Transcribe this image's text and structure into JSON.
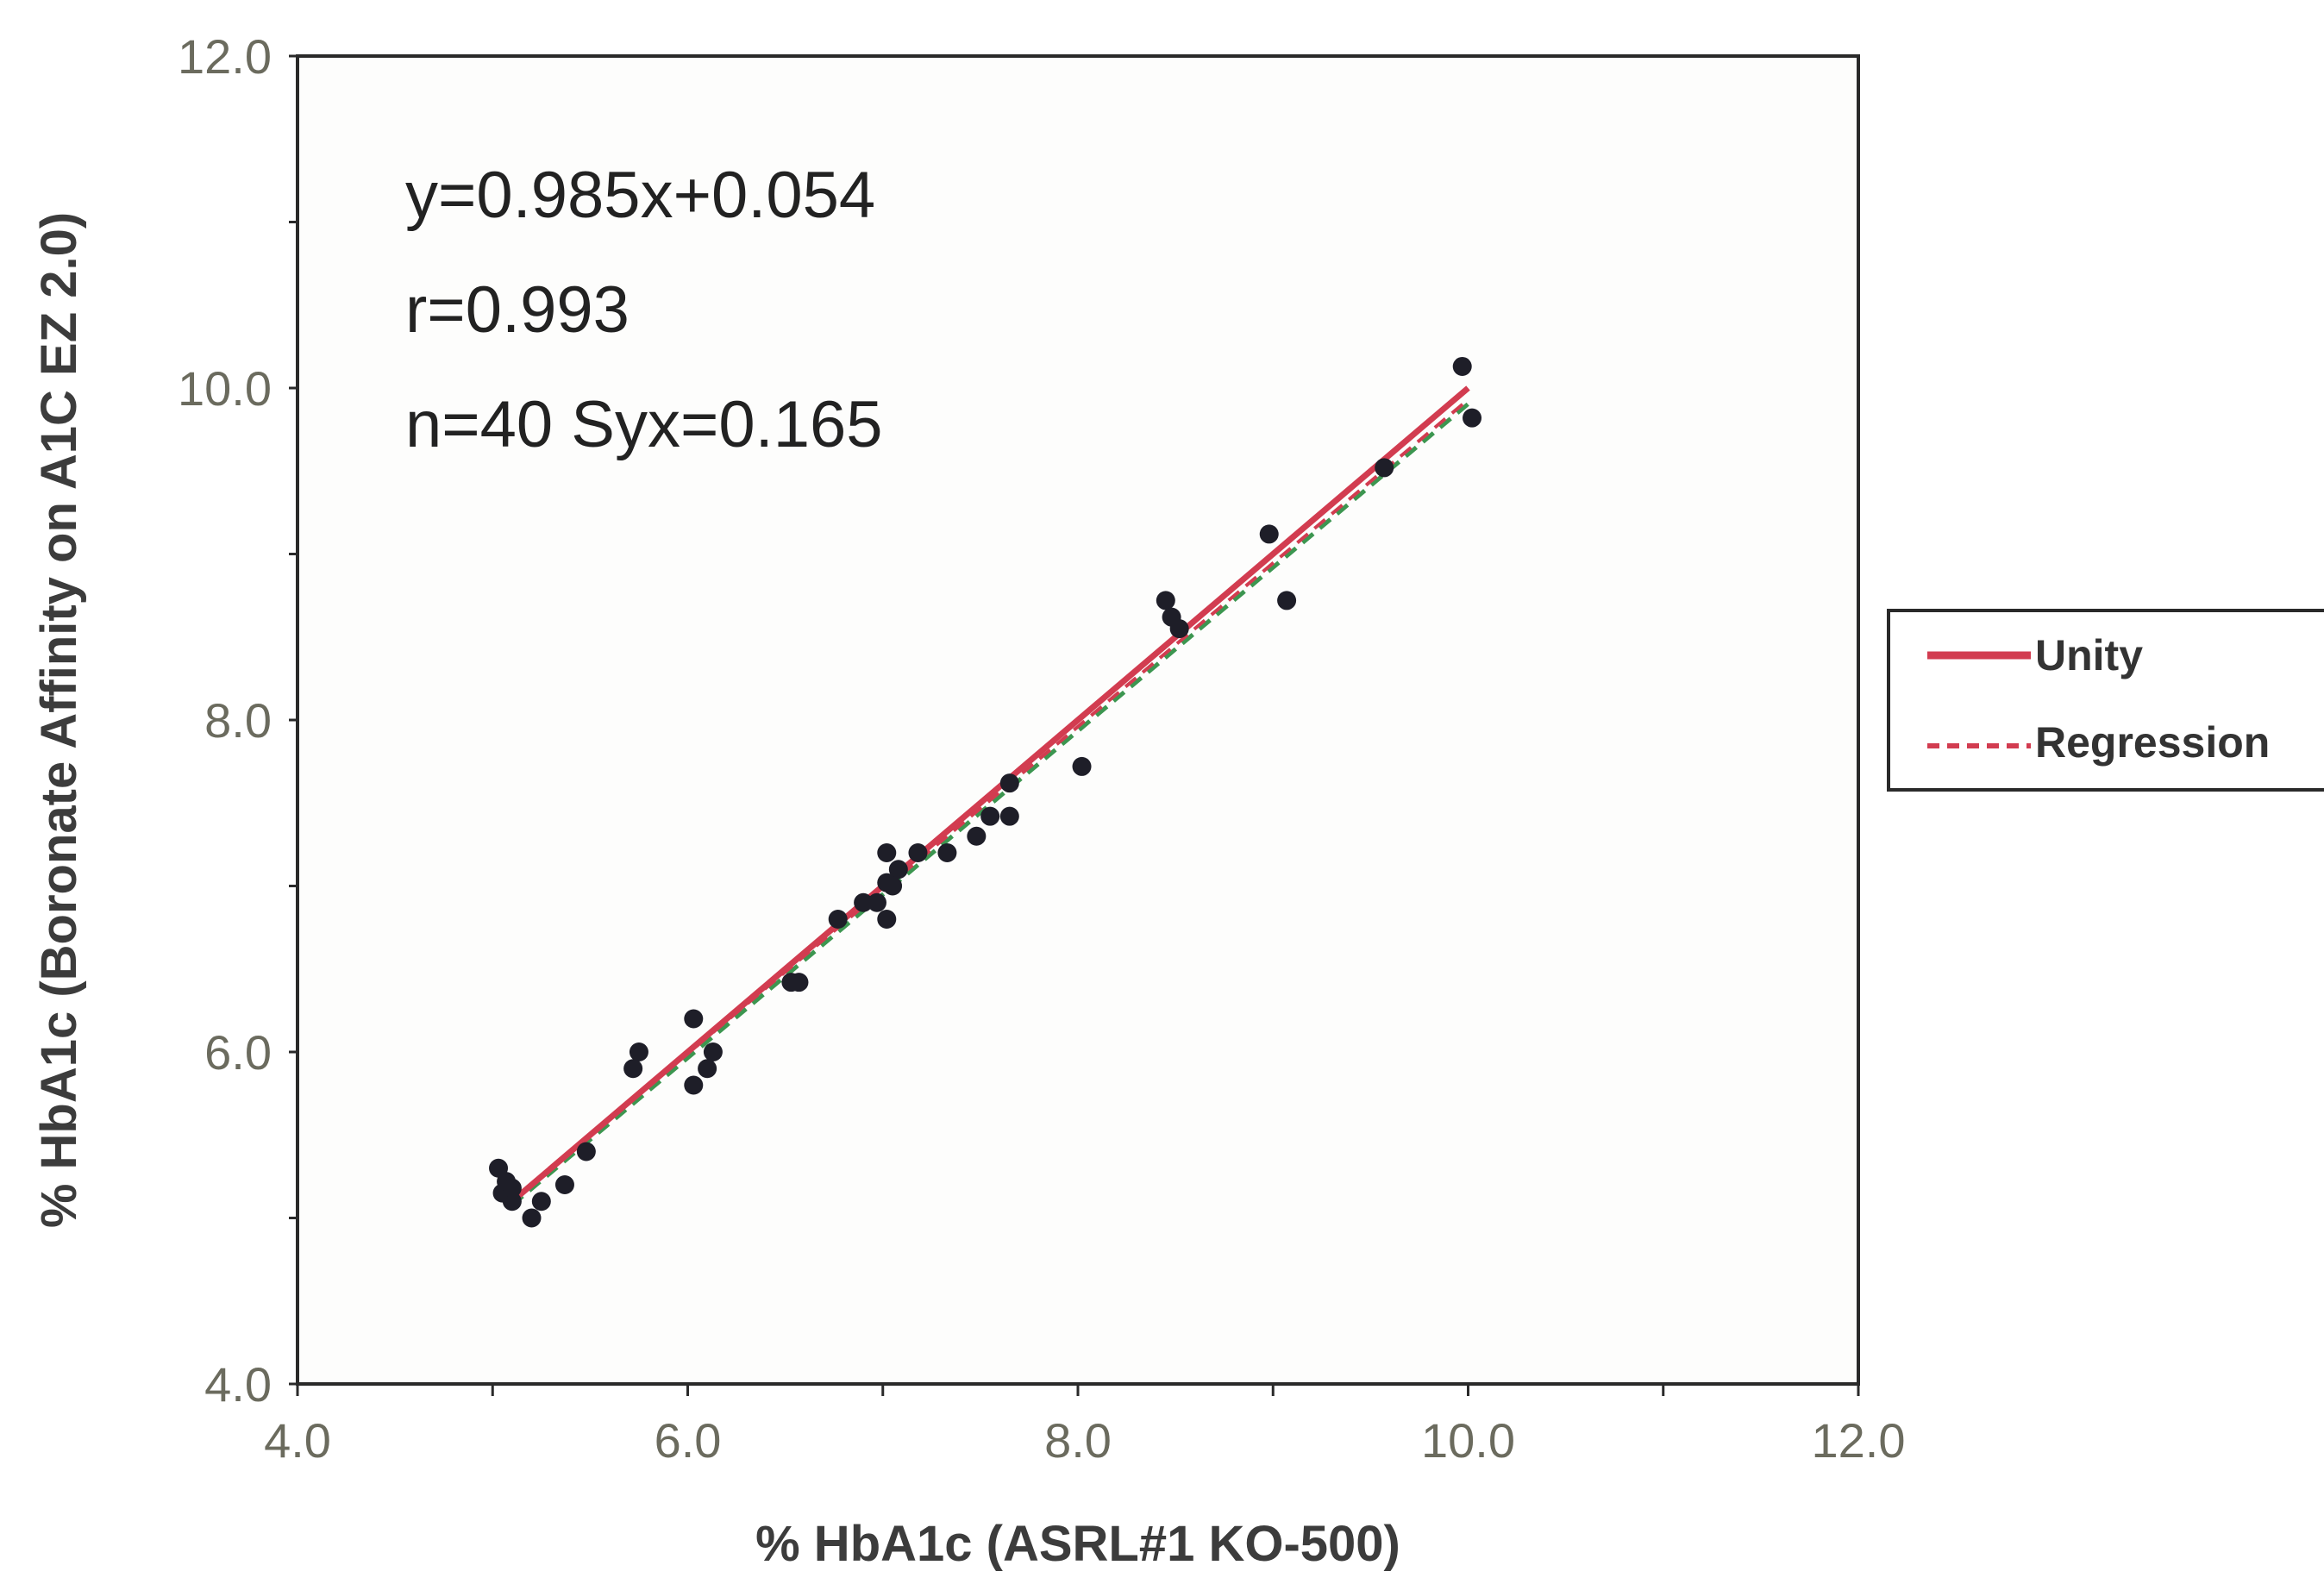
{
  "chart_data": {
    "type": "scatter",
    "title": "",
    "xlabel": "% HbA1c (ASRL#1 KO-500)",
    "ylabel": "% HbA1c (Boronate Affinity on A1C EZ 2.0)",
    "xlim": [
      4.0,
      12.0
    ],
    "ylim": [
      4.0,
      12.0
    ],
    "x_ticks": [
      "4.0",
      "6.0",
      "8.0",
      "10.0",
      "12.0"
    ],
    "y_ticks": [
      "4.0",
      "6.0",
      "8.0",
      "10.0",
      "12.0"
    ],
    "grid": false,
    "legend_position": "right",
    "annotations": [
      "y=0.985x+0.054",
      "r=0.993",
      "n=40 Syx=0.165"
    ],
    "series": [
      {
        "name": "",
        "kind": "points",
        "color": "#1e1e28",
        "points": [
          [
            5.03,
            5.3
          ],
          [
            5.05,
            5.15
          ],
          [
            5.07,
            5.22
          ],
          [
            5.1,
            5.1
          ],
          [
            5.2,
            5.0
          ],
          [
            5.25,
            5.1
          ],
          [
            5.37,
            5.2
          ],
          [
            5.48,
            5.4
          ],
          [
            5.72,
            5.9
          ],
          [
            5.75,
            6.0
          ],
          [
            6.03,
            6.2
          ],
          [
            6.03,
            5.8
          ],
          [
            6.1,
            5.9
          ],
          [
            6.13,
            6.0
          ],
          [
            6.53,
            6.42
          ],
          [
            6.57,
            6.42
          ],
          [
            6.77,
            6.8
          ],
          [
            6.9,
            6.9
          ],
          [
            6.97,
            6.9
          ],
          [
            7.02,
            7.2
          ],
          [
            7.02,
            6.8
          ],
          [
            7.05,
            7.0
          ],
          [
            7.08,
            7.1
          ],
          [
            7.18,
            7.2
          ],
          [
            7.33,
            7.2
          ],
          [
            7.48,
            7.3
          ],
          [
            7.55,
            7.42
          ],
          [
            7.65,
            7.42
          ],
          [
            7.65,
            7.62
          ],
          [
            8.02,
            7.72
          ],
          [
            8.45,
            8.72
          ],
          [
            8.48,
            8.62
          ],
          [
            8.52,
            8.55
          ],
          [
            8.98,
            9.12
          ],
          [
            9.07,
            8.72
          ],
          [
            9.57,
            9.52
          ],
          [
            9.97,
            10.13
          ],
          [
            10.02,
            9.82
          ],
          [
            5.1,
            5.18
          ],
          [
            7.02,
            7.02
          ]
        ]
      },
      {
        "name": "Unity",
        "kind": "line",
        "color": "#d23c50",
        "style": "solid",
        "x": [
          5.1,
          10.0
        ],
        "y": [
          5.1,
          10.0
        ]
      },
      {
        "name": "Regression",
        "kind": "line",
        "color": "#d23c50",
        "accent_color": "#3c9650",
        "style": "dashed",
        "slope": 0.985,
        "intercept": 0.054,
        "x": [
          5.1,
          10.0
        ],
        "y": [
          5.078,
          9.904
        ]
      }
    ]
  }
}
